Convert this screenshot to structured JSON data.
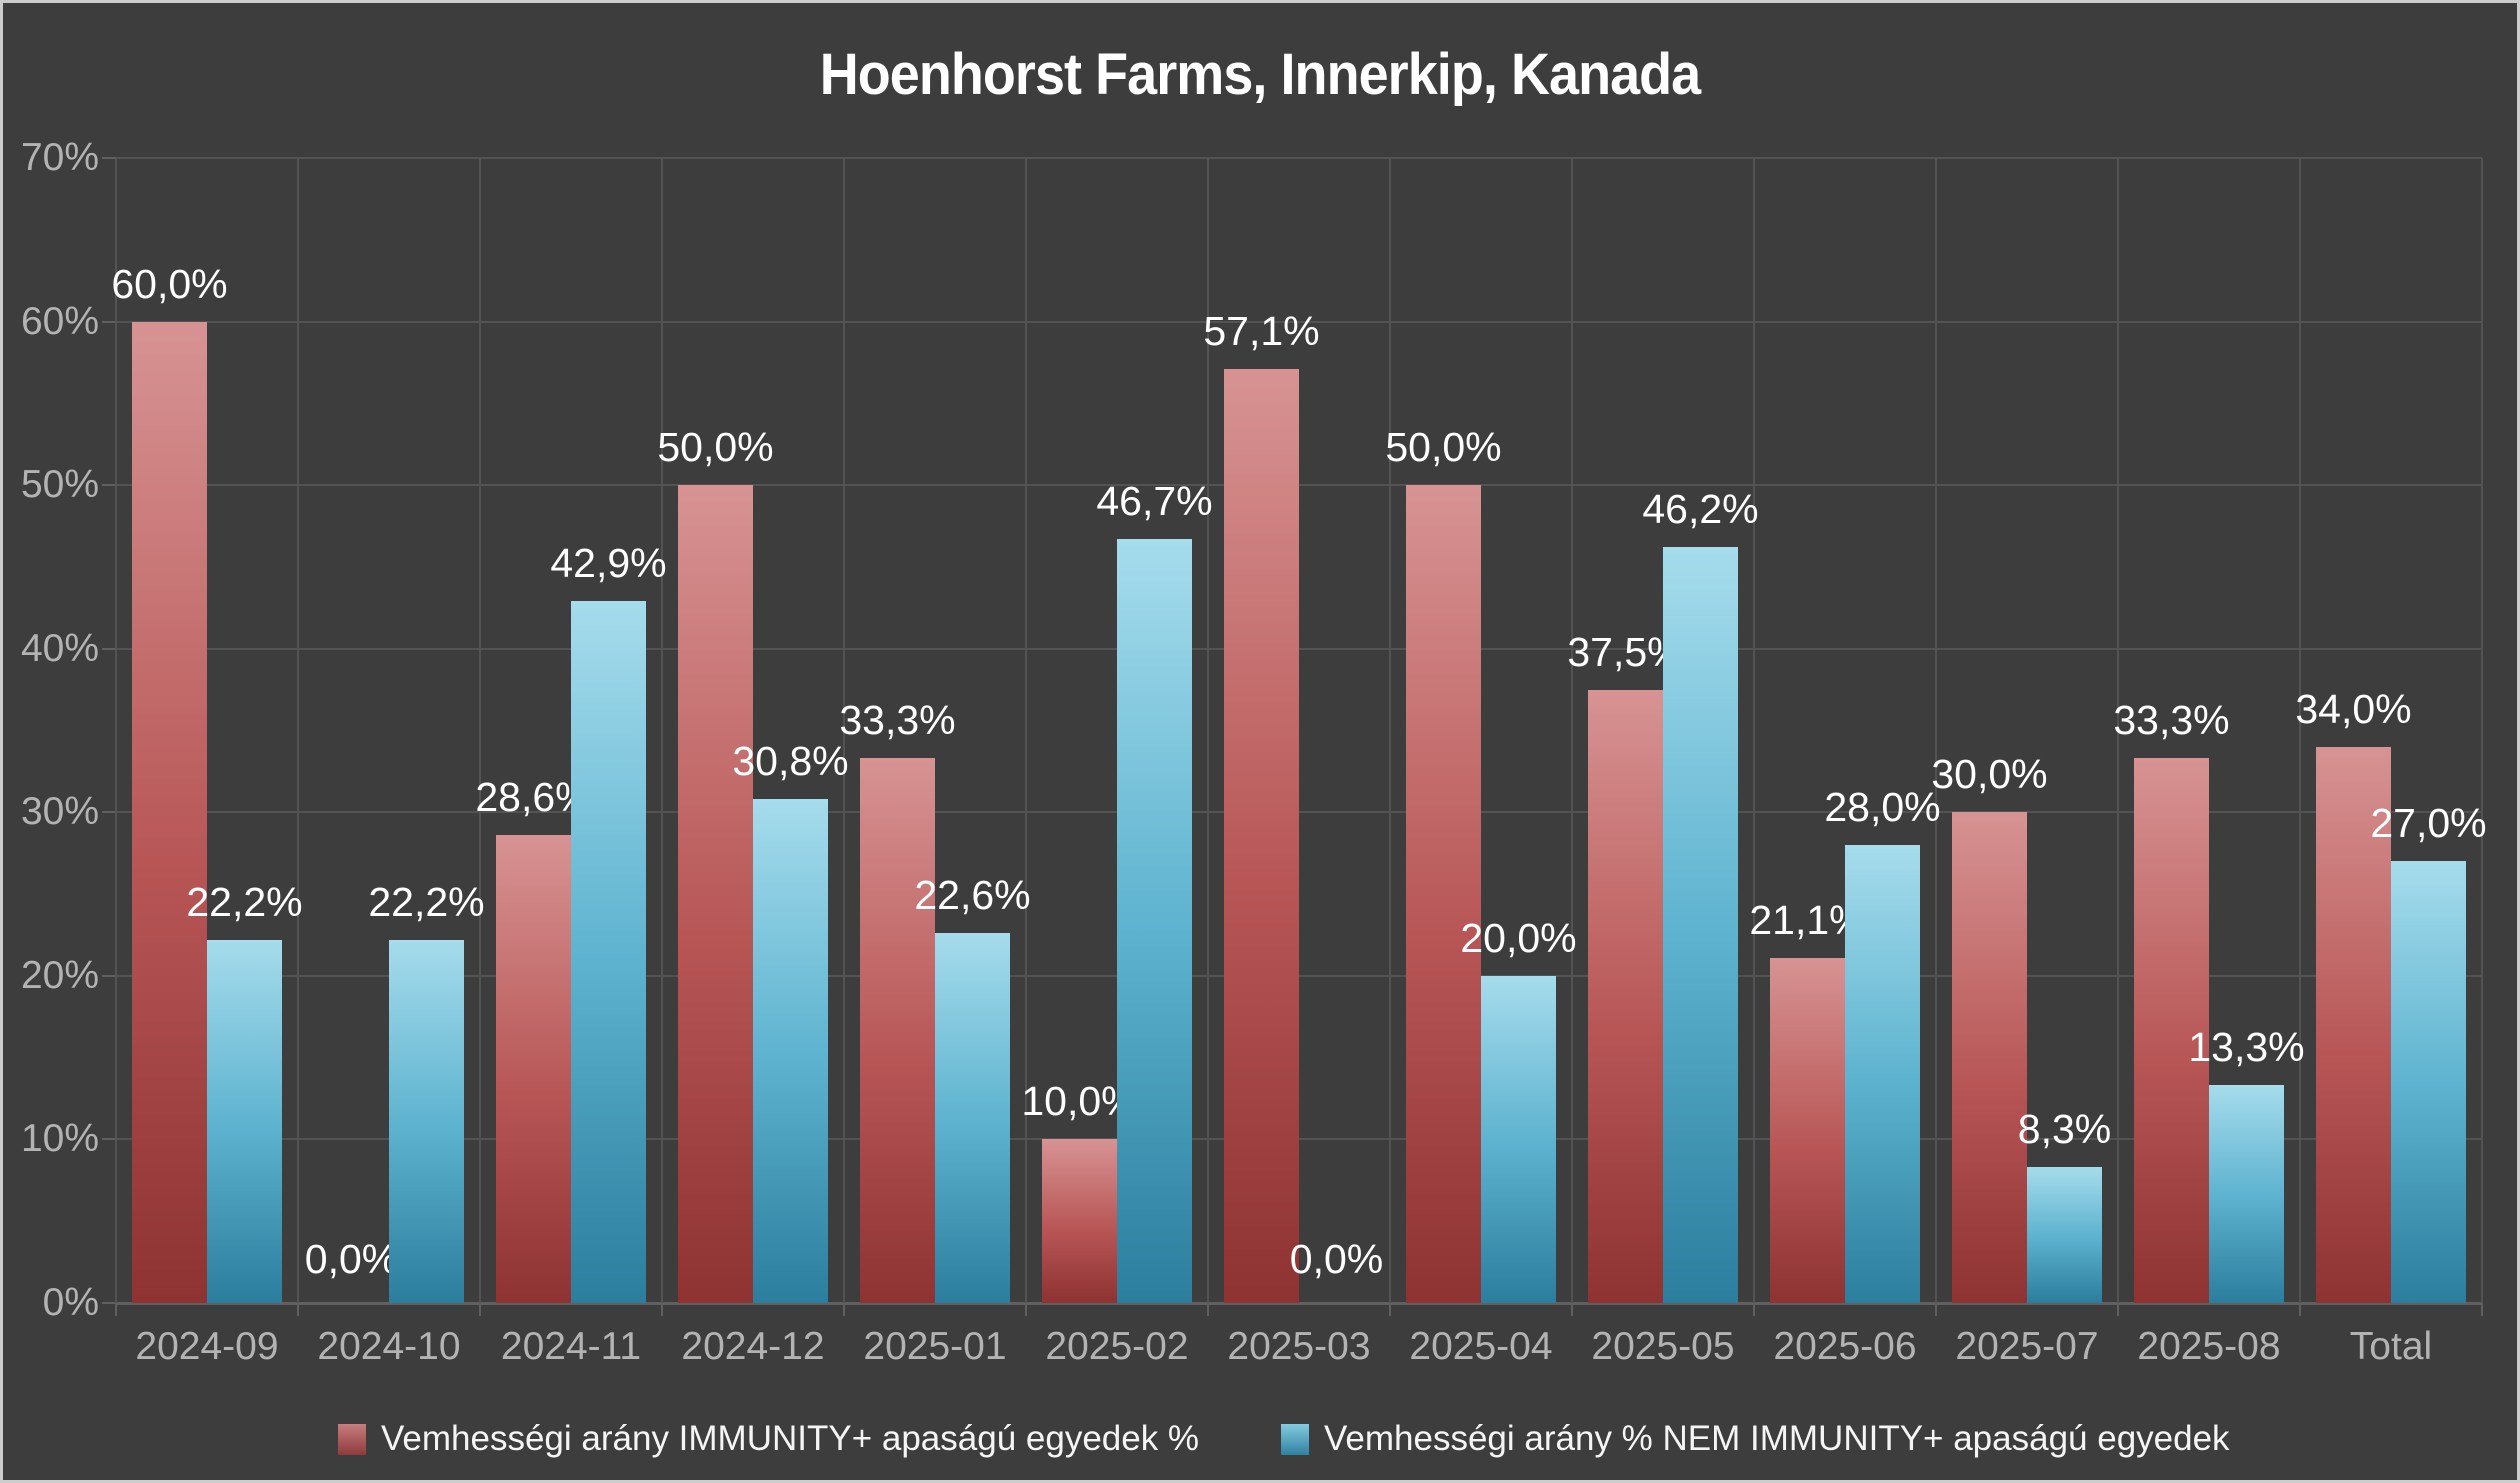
{
  "colors": {
    "background": "#3d3d3d",
    "frame_border": "#cdcdcd",
    "gridline": "#535353",
    "axis_line": "#606060",
    "tick_label_text": "#b3b3b3",
    "data_label_text": "#ffffff",
    "title_text": "#ffffff",
    "series_red_top": "#d79393",
    "series_red_bottom": "#8e3232",
    "series_blue_top": "#a6dcec",
    "series_blue_bottom": "#2b7e9d"
  },
  "chart_data": {
    "type": "bar",
    "title": "Hoenhorst Farms, Innerkip, Kanada",
    "categories": [
      "2024-09",
      "2024-10",
      "2024-11",
      "2024-12",
      "2025-01",
      "2025-02",
      "2025-03",
      "2025-04",
      "2025-05",
      "2025-06",
      "2025-07",
      "2025-08",
      "Total"
    ],
    "series": [
      {
        "name": "Vemhességi arány IMMUNITY+ apaságú egyedek %",
        "color": "red",
        "values": [
          60.0,
          0.0,
          28.6,
          50.0,
          33.3,
          10.0,
          57.1,
          50.0,
          37.5,
          21.1,
          30.0,
          33.3,
          34.0
        ],
        "labels": [
          "60,0%",
          "0,0%",
          "28,6%",
          "50,0%",
          "33,3%",
          "10,0%",
          "57,1%",
          "50,0%",
          "37,5%",
          "21,1%",
          "30,0%",
          "33,3%",
          "34,0%"
        ]
      },
      {
        "name": "Vemhességi arány % NEM IMMUNITY+ apaságú egyedek",
        "color": "blue",
        "values": [
          22.2,
          22.2,
          42.9,
          30.8,
          22.6,
          46.7,
          0.0,
          20.0,
          46.2,
          28.0,
          8.3,
          13.3,
          27.0
        ],
        "labels": [
          "22,2%",
          "22,2%",
          "42,9%",
          "30,8%",
          "22,6%",
          "46,7%",
          "0,0%",
          "20,0%",
          "46,2%",
          "28,0%",
          "8,3%",
          "13,3%",
          "27,0%"
        ]
      }
    ],
    "ylim": [
      0,
      70
    ],
    "ytick_step": 10,
    "ytick_labels": [
      "0%",
      "10%",
      "20%",
      "30%",
      "40%",
      "50%",
      "60%",
      "70%"
    ],
    "grid": true,
    "legend_position": "bottom",
    "decimal_separator": ","
  }
}
